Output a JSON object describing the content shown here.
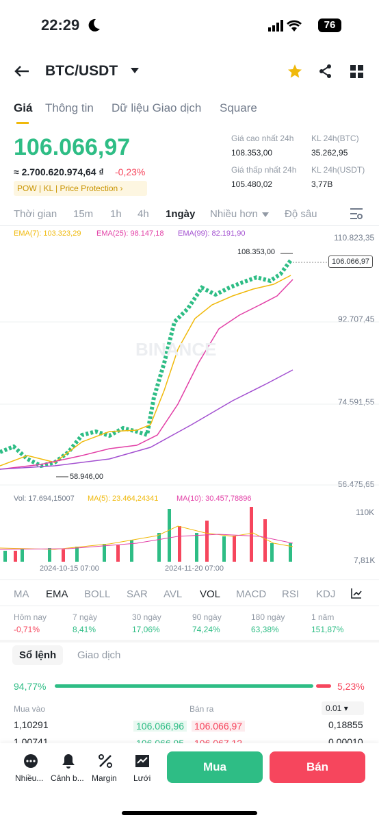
{
  "status_bar": {
    "time": "22:29",
    "battery": "76"
  },
  "header": {
    "pair": "BTC/USDT"
  },
  "tabs": [
    "Giá",
    "Thông tin",
    "Dữ liệu Giao dịch",
    "Square"
  ],
  "price": {
    "last": "106.066,97",
    "fiat": "≈ 2.700.620.974,64 ₫",
    "change": "-0,23%",
    "tags": [
      "POW",
      "KL",
      "Price Protection"
    ]
  },
  "stats": [
    {
      "label": "Giá cao nhất 24h",
      "value": "108.353,00"
    },
    {
      "label": "KL 24h(BTC)",
      "value": "35.262,95"
    },
    {
      "label": "Giá thấp nhất 24h",
      "value": "105.480,02"
    },
    {
      "label": "KL 24h(USDT)",
      "value": "3,77B"
    }
  ],
  "intervals": [
    "Thời gian",
    "15m",
    "1h",
    "4h",
    "1ngày",
    "Nhiều hơn",
    "Độ sâu"
  ],
  "chart": {
    "ema_labels": [
      "EMA(7): 103.323,29",
      "EMA(25): 98.147,18",
      "EMA(99): 82.191,90"
    ],
    "price_axis": [
      "110.823,35",
      "92.707,45",
      "74.591,55",
      "56.475,65"
    ],
    "high_marker": "108.353,00",
    "low_marker": "58.946,00",
    "last_price": "106.066,97",
    "watermark": "BINANCE",
    "volume_labels": [
      "Vol: 17.694,15007",
      "MA(5): 23.464,24341",
      "MA(10): 30.457,78896"
    ],
    "volume_axis": [
      "110K",
      "7,81K"
    ],
    "dates": [
      "2024-10-15 07:00",
      "2024-11-20 07:00"
    ]
  },
  "indicators": [
    "MA",
    "EMA",
    "BOLL",
    "SAR",
    "AVL",
    "VOL",
    "MACD",
    "RSI",
    "KDJ"
  ],
  "performance": [
    {
      "period": "Hôm nay",
      "change": "-0,71%"
    },
    {
      "period": "7 ngày",
      "change": "8,41%"
    },
    {
      "period": "30 ngày",
      "change": "17,06%"
    },
    {
      "period": "90 ngày",
      "change": "74,24%"
    },
    {
      "period": "180 ngày",
      "change": "63,38%"
    },
    {
      "period": "1 năm",
      "change": "151,87%"
    }
  ],
  "order_book": {
    "tabs": [
      "Sổ lệnh",
      "Giao dịch"
    ],
    "buy_ratio": "94,77%",
    "sell_ratio": "5,23%",
    "headers": [
      "Mua vào",
      "Bán ra"
    ],
    "precision": "0.01",
    "rows": [
      [
        "1,10291",
        "106.066,96",
        "106.066,97",
        "0,18855"
      ],
      [
        "1,00741",
        "106.066,95",
        "106.067,12",
        "0,00010"
      ]
    ]
  },
  "bottom_nav": [
    "Nhiều...",
    "Cảnh b...",
    "Margin",
    "Lưới"
  ],
  "actions": [
    "Mua",
    "Bán"
  ]
}
